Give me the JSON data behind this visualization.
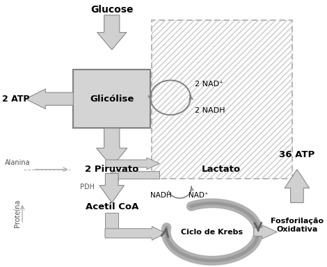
{
  "bg_color": "#ffffff",
  "gray_light": "#d4d4d4",
  "gray_mid": "#b0b0b0",
  "gray_dark": "#808080",
  "gray_krebs": "#a0a0a0",
  "labels": {
    "glucose": "Glucose",
    "glycolysis": "Glicólise",
    "atp": "2 ATP",
    "nad_plus": "2 NAD⁺",
    "nadh": "2 NADH",
    "pyruvate": "2 Piruvato",
    "lactate": "Lactato",
    "alanine": "Alanina",
    "protein": "Proteína",
    "pdh": "PDH",
    "nadh2": "NADH",
    "nad2": "NAD⁺",
    "acetyl": "Acetil CoA",
    "krebs": "Ciclo de Krebs",
    "atp36": "36 ATP",
    "fosforilacao": "Fosforilação\nOxidativa"
  }
}
